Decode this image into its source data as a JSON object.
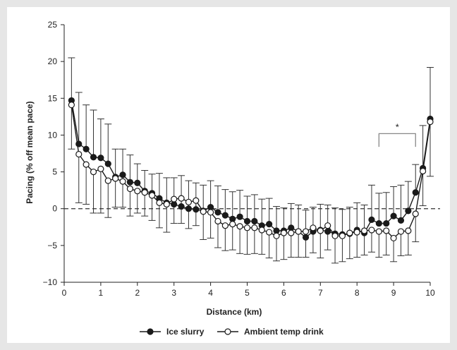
{
  "chart_data": {
    "type": "line",
    "xlabel": "Distance (km)",
    "ylabel": "Pacing (% off mean pace)",
    "xlim": [
      0,
      10
    ],
    "ylim": [
      -10,
      25
    ],
    "xticks": [
      0,
      1,
      2,
      3,
      4,
      5,
      6,
      7,
      8,
      9,
      10
    ],
    "yticks": [
      -10,
      -5,
      0,
      5,
      10,
      15,
      20,
      25
    ],
    "reference_line": 0,
    "grid": false,
    "legend_position": "bottom-center",
    "significance_bracket": {
      "x_start": 8.6,
      "x_end": 9.6,
      "label": "*"
    },
    "x": [
      0.2,
      0.4,
      0.6,
      0.8,
      1.0,
      1.2,
      1.4,
      1.6,
      1.8,
      2.0,
      2.2,
      2.4,
      2.6,
      2.8,
      3.0,
      3.2,
      3.4,
      3.6,
      3.8,
      4.0,
      4.2,
      4.4,
      4.6,
      4.8,
      5.0,
      5.2,
      5.4,
      5.6,
      5.8,
      6.0,
      6.2,
      6.4,
      6.6,
      6.8,
      7.0,
      7.2,
      7.4,
      7.6,
      7.8,
      8.0,
      8.2,
      8.4,
      8.6,
      8.8,
      9.0,
      9.2,
      9.4,
      9.6,
      9.8,
      10.0
    ],
    "series": [
      {
        "name": "Ice slurry",
        "marker": "filled-circle",
        "color": "#1a1a1a",
        "values": [
          14.7,
          8.8,
          8.1,
          7.0,
          6.9,
          6.1,
          4.3,
          4.6,
          3.6,
          3.5,
          2.4,
          2.1,
          1.4,
          0.8,
          0.6,
          0.3,
          0.0,
          -0.1,
          -0.3,
          0.2,
          -0.5,
          -0.9,
          -1.4,
          -1.1,
          -1.7,
          -1.7,
          -2.3,
          -2.1,
          -3.0,
          -3.0,
          -2.6,
          -3.1,
          -3.9,
          -3.1,
          -2.9,
          -3.1,
          -3.4,
          -3.5,
          -3.4,
          -2.9,
          -3.3,
          -1.5,
          -2.0,
          -2.0,
          -1.0,
          -1.6,
          -0.3,
          2.2,
          5.5,
          12.2
        ],
        "errors": [
          5.8,
          7.0,
          6.0,
          6.4,
          5.3,
          5.4,
          3.8,
          3.5,
          3.7,
          2.6,
          2.8,
          2.6,
          3.4,
          3.4,
          3.6,
          4.2,
          3.8,
          3.6,
          3.5,
          3.6,
          3.6,
          3.5,
          3.7,
          3.6,
          3.4,
          3.6,
          3.6,
          3.5,
          3.3,
          3.1,
          3.3,
          3.6,
          3.7,
          3.3,
          3.5,
          3.6,
          3.5,
          3.4,
          3.6,
          3.7,
          3.8,
          4.7,
          4.1,
          4.2,
          4.0,
          4.8,
          4.0,
          3.8,
          5.8,
          7.0
        ]
      },
      {
        "name": "Ambient temp drink",
        "marker": "open-circle",
        "color": "#1a1a1a",
        "values": [
          14.1,
          7.4,
          6.0,
          5.0,
          5.4,
          3.8,
          4.1,
          3.7,
          2.7,
          2.4,
          2.2,
          1.8,
          0.8,
          0.6,
          1.3,
          1.4,
          0.9,
          1.1,
          -0.4,
          -0.5,
          -1.7,
          -2.3,
          -2.1,
          -2.4,
          -2.6,
          -2.6,
          -2.9,
          -3.2,
          -3.7,
          -3.3,
          -3.3,
          -3.1,
          -3.1,
          -2.6,
          -3.0,
          -2.3,
          -3.7,
          -3.7,
          -3.3,
          -3.2,
          -3.0,
          -2.9,
          -3.1,
          -3.0,
          -4.0,
          -3.1,
          -3.0,
          -0.7,
          5.1,
          11.8
        ],
        "errors": [
          6.0,
          6.6,
          5.4,
          5.6,
          6.0,
          5.0,
          3.9,
          3.5,
          3.7,
          3.0,
          3.2,
          3.4,
          3.4,
          3.8,
          3.3,
          3.4,
          3.6,
          3.4,
          3.8,
          3.5,
          3.6,
          3.4,
          3.5,
          3.7,
          3.6,
          3.5,
          3.3,
          3.5,
          3.4,
          3.6,
          3.3,
          3.5,
          3.5,
          3.4,
          3.7,
          3.3,
          3.7,
          3.5,
          3.5,
          3.4,
          3.3,
          3.0,
          3.5,
          3.3,
          3.2,
          3.3,
          3.3,
          3.8,
          4.7,
          7.4
        ]
      }
    ]
  }
}
